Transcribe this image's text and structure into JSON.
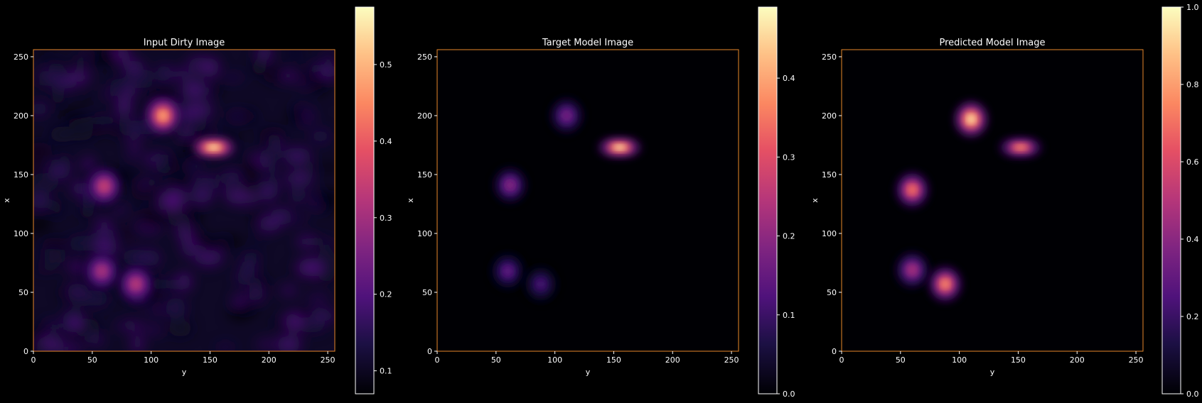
{
  "colors": {
    "background": "#000000",
    "frame": "#e8872a",
    "text": "#ffffff",
    "colormap": "magma"
  },
  "chart_data": [
    {
      "type": "heatmap",
      "title": "Input Dirty Image",
      "xlabel": "y",
      "ylabel": "x",
      "xlim": [
        0,
        256
      ],
      "ylim": [
        0,
        256
      ],
      "xticks": [
        "0",
        "50",
        "100",
        "150",
        "200",
        "250"
      ],
      "yticks": [
        "0",
        "50",
        "100",
        "150",
        "200",
        "250"
      ],
      "colorbar": {
        "range": [
          0.07,
          0.575
        ],
        "ticks": [
          "0.1",
          "0.2",
          "0.3",
          "0.4",
          "0.5"
        ]
      },
      "noise": true,
      "sources": [
        {
          "y": 110,
          "x": 200,
          "peak": 0.5
        },
        {
          "y": 153,
          "x": 173,
          "peak": 0.57
        },
        {
          "y": 60,
          "x": 140,
          "peak": 0.36
        },
        {
          "y": 58,
          "x": 68,
          "peak": 0.32
        },
        {
          "y": 87,
          "x": 57,
          "peak": 0.34
        }
      ]
    },
    {
      "type": "heatmap",
      "title": "Target Model Image",
      "xlabel": "y",
      "ylabel": "x",
      "xlim": [
        0,
        256
      ],
      "ylim": [
        0,
        256
      ],
      "xticks": [
        "0",
        "50",
        "100",
        "150",
        "200",
        "250"
      ],
      "yticks": [
        "0",
        "50",
        "100",
        "150",
        "200",
        "250"
      ],
      "colorbar": {
        "range": [
          0.0,
          0.49
        ],
        "ticks": [
          "0.0",
          "0.1",
          "0.2",
          "0.3",
          "0.4"
        ]
      },
      "noise": false,
      "sources": [
        {
          "y": 110,
          "x": 200,
          "peak": 0.18
        },
        {
          "y": 155,
          "x": 173,
          "peak": 0.49
        },
        {
          "y": 62,
          "x": 141,
          "peak": 0.2
        },
        {
          "y": 60,
          "x": 68,
          "peak": 0.15
        },
        {
          "y": 88,
          "x": 57,
          "peak": 0.12
        }
      ]
    },
    {
      "type": "heatmap",
      "title": "Predicted Model Image",
      "xlabel": "y",
      "ylabel": "x",
      "xlim": [
        0,
        256
      ],
      "ylim": [
        0,
        256
      ],
      "xticks": [
        "0",
        "50",
        "100",
        "150",
        "200",
        "250"
      ],
      "yticks": [
        "0",
        "50",
        "100",
        "150",
        "200",
        "250"
      ],
      "colorbar": {
        "range": [
          0.0,
          1.0
        ],
        "ticks": [
          "0.0",
          "0.2",
          "0.4",
          "0.6",
          "0.8",
          "1.0"
        ]
      },
      "noise": false,
      "sources": [
        {
          "y": 110,
          "x": 197,
          "peak": 1.0
        },
        {
          "y": 152,
          "x": 173,
          "peak": 0.8
        },
        {
          "y": 60,
          "x": 137,
          "peak": 0.75
        },
        {
          "y": 60,
          "x": 69,
          "peak": 0.5
        },
        {
          "y": 88,
          "x": 57,
          "peak": 0.8
        }
      ]
    }
  ]
}
